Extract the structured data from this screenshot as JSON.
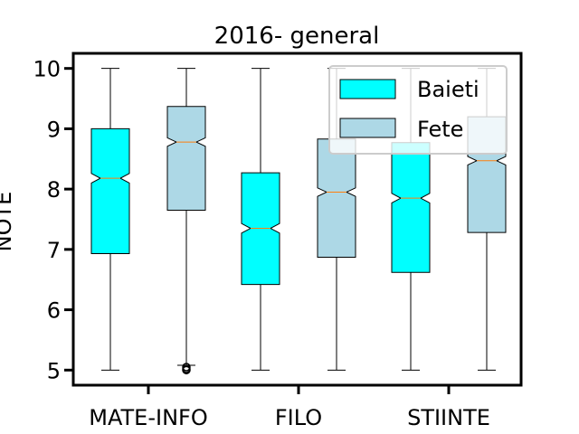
{
  "chart_data": {
    "type": "boxplot",
    "title": "2016- general",
    "xlabel": "",
    "ylabel": "NOTE",
    "ylim": [
      4.75,
      10.25
    ],
    "yticks": [
      5,
      6,
      7,
      8,
      9,
      10
    ],
    "categories": [
      "MATE-INFO",
      "FILO",
      "STIINTE"
    ],
    "notched": true,
    "legend": {
      "position": "upper-right",
      "entries": [
        {
          "label": "Baieti",
          "color": "#00ffff"
        },
        {
          "label": "Fete",
          "color": "#add8e6"
        }
      ]
    },
    "series": [
      {
        "name": "Baieti",
        "color": "#00ffff",
        "boxes": [
          {
            "category": "MATE-INFO",
            "whisker_low": 5.0,
            "q1": 6.93,
            "median": 8.18,
            "q3": 9.0,
            "whisker_high": 10.0,
            "notch_low": 8.1,
            "notch_high": 8.26,
            "outliers": []
          },
          {
            "category": "FILO",
            "whisker_low": 5.0,
            "q1": 6.42,
            "median": 7.35,
            "q3": 8.27,
            "whisker_high": 10.0,
            "notch_low": 7.27,
            "notch_high": 7.43,
            "outliers": []
          },
          {
            "category": "STIINTE",
            "whisker_low": 5.0,
            "q1": 6.62,
            "median": 7.85,
            "q3": 8.77,
            "whisker_high": 10.0,
            "notch_low": 7.77,
            "notch_high": 7.93,
            "outliers": []
          }
        ]
      },
      {
        "name": "Fete",
        "color": "#add8e6",
        "boxes": [
          {
            "category": "MATE-INFO",
            "whisker_low": 5.08,
            "q1": 7.65,
            "median": 8.78,
            "q3": 9.37,
            "whisker_high": 10.0,
            "notch_low": 8.71,
            "notch_high": 8.85,
            "outliers": [
              5.0,
              5.02,
              5.05
            ]
          },
          {
            "category": "FILO",
            "whisker_low": 5.0,
            "q1": 6.87,
            "median": 7.95,
            "q3": 8.83,
            "whisker_high": 10.0,
            "notch_low": 7.88,
            "notch_high": 8.02,
            "outliers": []
          },
          {
            "category": "STIINTE",
            "whisker_low": 5.0,
            "q1": 7.28,
            "median": 8.47,
            "q3": 9.2,
            "whisker_high": 10.0,
            "notch_low": 8.4,
            "notch_high": 8.54,
            "outliers": []
          }
        ]
      }
    ]
  }
}
